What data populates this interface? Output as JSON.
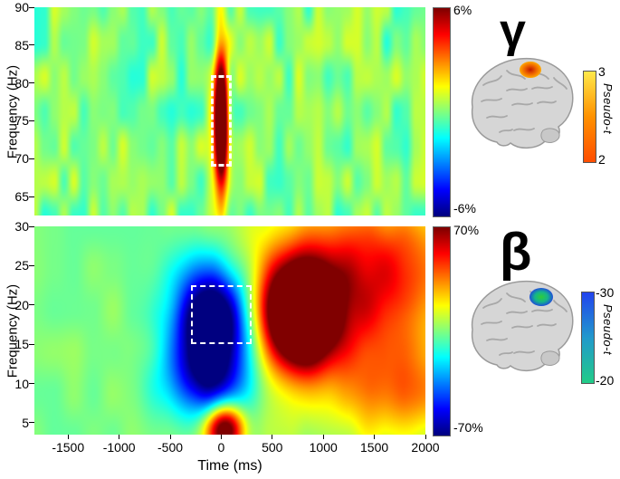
{
  "figure": {
    "bg": "#ffffff",
    "xlabel": "Time (ms)",
    "xticks": [
      -1500,
      -1000,
      -500,
      0,
      500,
      1000,
      1500,
      2000
    ]
  },
  "chart_data": [
    {
      "id": "gamma",
      "type": "heatmap",
      "band_symbol": "γ",
      "ylabel": "Frequency (Hz)",
      "ylim": [
        62.5,
        90
      ],
      "yticks": [
        65,
        70,
        75,
        80,
        85,
        90
      ],
      "xlim": [
        -1830,
        2000
      ],
      "colorbar": {
        "max_label": "6%",
        "min_label": "-6%",
        "range_percent": [
          -6,
          6
        ],
        "colormap": "jet"
      },
      "roi_box_ms_hz": {
        "t0": -100,
        "t1": 100,
        "f0": 69,
        "f1": 81
      },
      "heat_blobs": [
        {
          "t": 0,
          "f": 74.5,
          "st": 48,
          "sf": 6.2,
          "amp": 1.7
        }
      ],
      "noise": {
        "seed": 7,
        "amp": 0.18,
        "nx": 40,
        "ny": 6
      },
      "brain": {
        "pseudo_t_label": "Pseudo-t",
        "cbar_top": "3",
        "cbar_bottom": "2",
        "cbar_colors": [
          "#ffe84a",
          "#ff9100",
          "#ff4d00"
        ],
        "spot_colors": [
          "#c01800",
          "#ee6600",
          "#ffa800"
        ]
      }
    },
    {
      "id": "beta",
      "type": "heatmap",
      "band_symbol": "β",
      "ylabel": "Frequency (Hz)",
      "ylim": [
        3.5,
        30
      ],
      "yticks": [
        5,
        10,
        15,
        20,
        25,
        30
      ],
      "xlim": [
        -1830,
        2000
      ],
      "colorbar": {
        "max_label": "70%",
        "min_label": "-70%",
        "range_percent": [
          -70,
          70
        ],
        "colormap": "jet"
      },
      "roi_box_ms_hz": {
        "t0": -300,
        "t1": 300,
        "f0": 15,
        "f1": 22.5
      },
      "heat_blobs": [
        {
          "t": -80,
          "f": 17.5,
          "st": 270,
          "sf": 5.4,
          "amp": -1.55
        },
        {
          "t": -150,
          "f": 10,
          "st": 320,
          "sf": 3.6,
          "amp": -0.55
        },
        {
          "t": 780,
          "f": 19,
          "st": 230,
          "sf": 4.3,
          "amp": 1.75
        },
        {
          "t": 950,
          "f": 19.5,
          "st": 650,
          "sf": 8.5,
          "amp": 0.62
        },
        {
          "t": 1700,
          "f": 25,
          "st": 520,
          "sf": 6,
          "amp": 0.5
        },
        {
          "t": 1800,
          "f": 9,
          "st": 400,
          "sf": 5,
          "amp": 0.4
        },
        {
          "t": 30,
          "f": 4.2,
          "st": 130,
          "sf": 2.2,
          "amp": 1.25
        }
      ],
      "noise": {
        "seed": 13,
        "amp": 0.06,
        "nx": 20,
        "ny": 5
      },
      "brain": {
        "pseudo_t_label": "Pseudo-t",
        "cbar_top": "-30",
        "cbar_bottom": "-20",
        "cbar_colors": [
          "#2244ee",
          "#2299cc",
          "#22cc88"
        ],
        "spot_colors": [
          "#2ecc3a",
          "#15b58a",
          "#1e4fd8"
        ]
      }
    }
  ]
}
